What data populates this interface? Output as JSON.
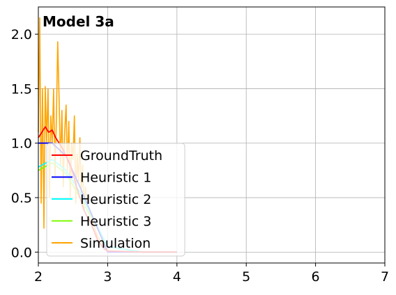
{
  "chart_data": {
    "type": "line",
    "title": "Model 3a",
    "xlabel": "",
    "ylabel": "",
    "xlim": [
      2,
      7
    ],
    "ylim": [
      -0.1,
      2.25
    ],
    "xticks": [
      2,
      3,
      4,
      5,
      6,
      7
    ],
    "yticks": [
      0.0,
      0.5,
      1.0,
      1.5,
      2.0
    ],
    "xtick_labels": [
      "2",
      "3",
      "4",
      "5",
      "6",
      "7"
    ],
    "ytick_labels": [
      "0.0",
      "0.5",
      "1.0",
      "1.5",
      "2.0"
    ],
    "grid": true,
    "legend_position": "lower-left",
    "series": [
      {
        "name": "GroundTruth",
        "color": "#ff0000",
        "x": [
          2.0,
          2.05,
          2.1,
          2.15,
          2.2,
          2.25,
          2.3,
          2.35,
          2.4,
          2.45,
          2.5,
          2.55,
          2.6,
          2.65,
          2.7,
          2.75,
          2.8,
          2.85,
          2.9,
          2.95,
          3.0,
          3.5,
          4.0
        ],
        "y": [
          1.05,
          1.1,
          1.15,
          1.1,
          1.12,
          1.05,
          1.0,
          0.95,
          0.88,
          0.82,
          0.72,
          0.6,
          0.5,
          0.4,
          0.33,
          0.28,
          0.2,
          0.12,
          0.07,
          0.03,
          0.01,
          0.0,
          0.0
        ]
      },
      {
        "name": "Heuristic 1",
        "color": "#0000ff",
        "x": [
          2.0,
          2.2,
          2.4,
          2.6,
          2.8,
          3.0,
          3.5,
          4.0
        ],
        "y": [
          1.0,
          1.0,
          0.88,
          0.6,
          0.3,
          0.0,
          0.0,
          0.0
        ]
      },
      {
        "name": "Heuristic 2",
        "color": "#00ffff",
        "x": [
          2.0,
          2.2,
          2.4,
          2.6,
          2.8,
          3.0,
          3.5,
          4.0
        ],
        "y": [
          0.78,
          0.85,
          0.75,
          0.55,
          0.3,
          0.05,
          0.0,
          0.0
        ]
      },
      {
        "name": "Heuristic 3",
        "color": "#7cfc00",
        "x": [
          2.0,
          2.2,
          2.4,
          2.6,
          2.8,
          3.0,
          3.5,
          4.0
        ],
        "y": [
          0.75,
          0.82,
          0.72,
          0.5,
          0.28,
          0.05,
          0.0,
          0.0
        ]
      },
      {
        "name": "Simulation",
        "color": "#ffa500",
        "x": [
          2.0,
          2.02,
          2.04,
          2.06,
          2.08,
          2.1,
          2.12,
          2.14,
          2.16,
          2.18,
          2.2,
          2.22,
          2.24,
          2.26,
          2.28,
          2.3,
          2.32,
          2.34,
          2.36,
          2.38,
          2.4,
          2.42,
          2.44,
          2.46,
          2.48,
          2.5,
          2.52,
          2.54,
          2.56,
          2.58,
          2.6,
          2.62,
          2.64,
          2.66,
          2.68,
          2.7,
          2.75,
          2.8,
          2.85,
          2.9,
          2.95,
          3.0
        ],
        "y": [
          1.1,
          2.15,
          0.45,
          1.5,
          0.22,
          1.52,
          1.0,
          1.5,
          0.5,
          1.25,
          1.0,
          1.5,
          0.7,
          1.2,
          1.93,
          1.4,
          0.8,
          1.3,
          0.6,
          1.1,
          1.35,
          0.75,
          1.2,
          0.5,
          1.0,
          0.85,
          1.25,
          0.45,
          0.9,
          0.65,
          1.05,
          0.55,
          0.8,
          0.4,
          0.6,
          0.45,
          0.35,
          0.25,
          0.15,
          0.1,
          0.05,
          0.02
        ]
      }
    ]
  }
}
